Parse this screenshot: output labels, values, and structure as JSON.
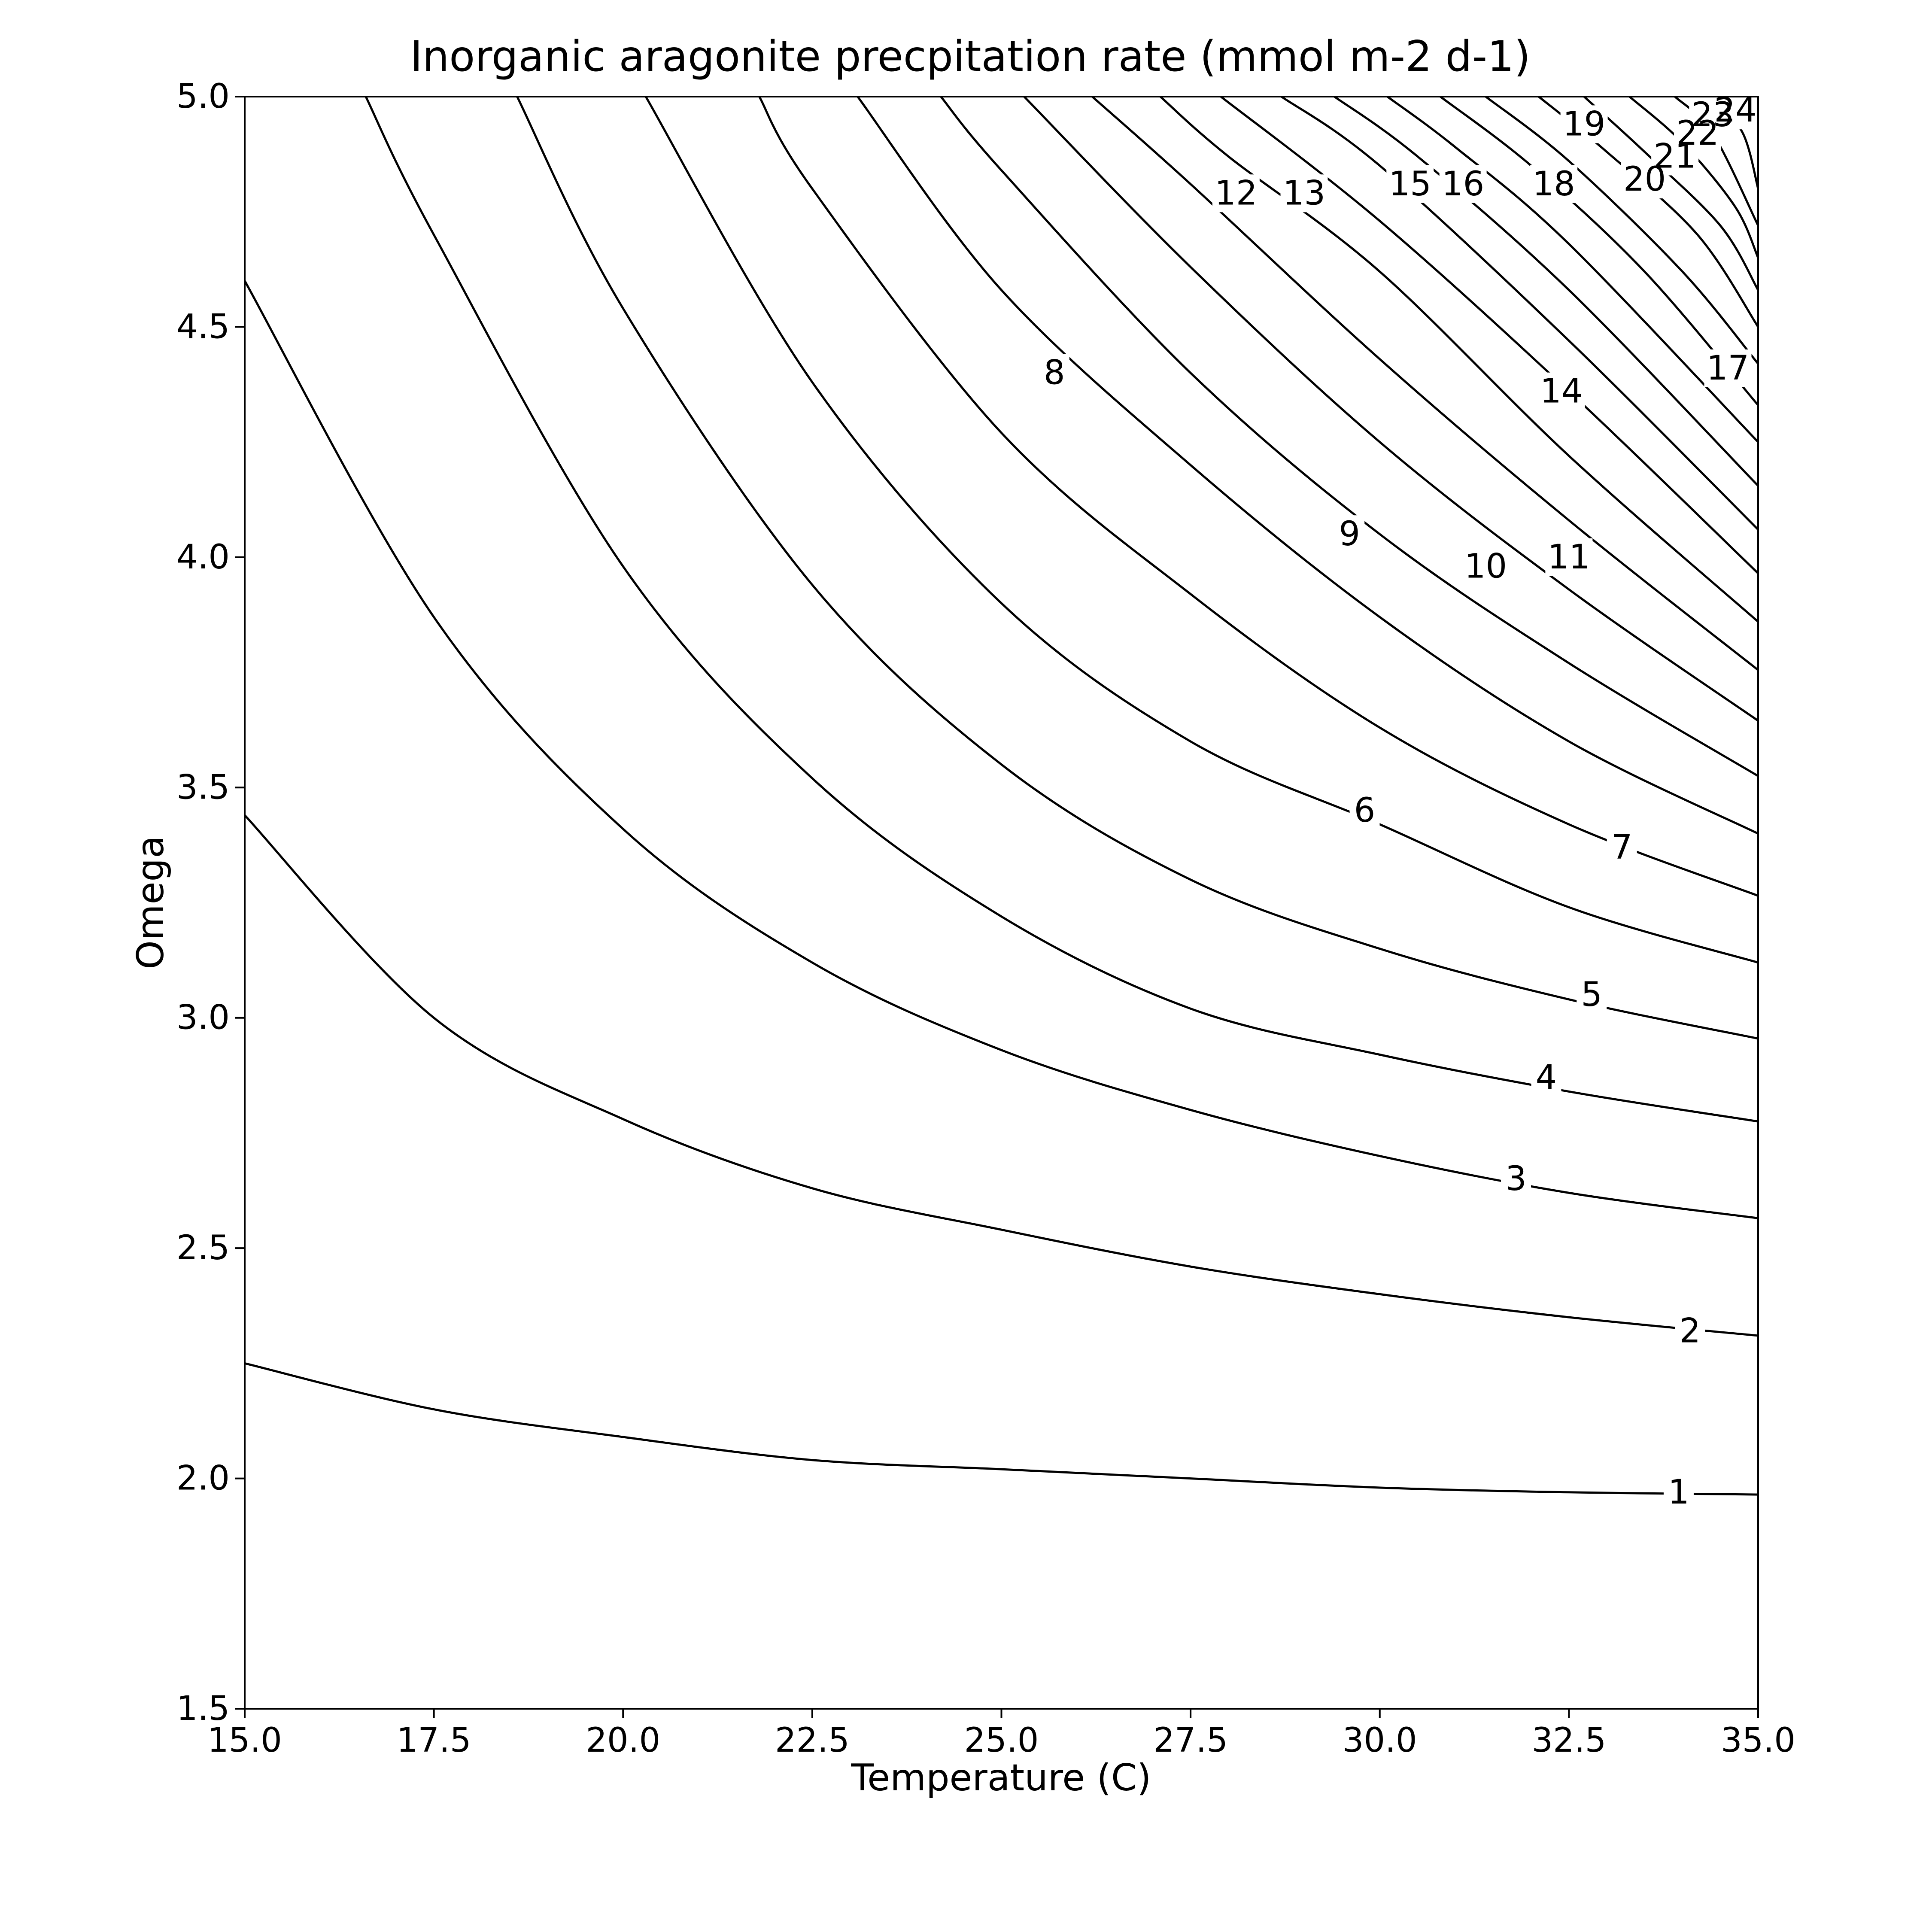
{
  "chart_data": {
    "type": "contour",
    "title": "Inorganic aragonite precpitation rate (mmol m-2 d-1)",
    "xlabel": "Temperature (C)",
    "ylabel": "Omega",
    "xlim": [
      15.0,
      35.0
    ],
    "ylim": [
      1.5,
      5.0
    ],
    "x_ticks": [
      "15.0",
      "17.5",
      "20.0",
      "22.5",
      "25.0",
      "27.5",
      "30.0",
      "32.5",
      "35.0"
    ],
    "y_ticks": [
      "1.5",
      "2.0",
      "2.5",
      "3.0",
      "3.5",
      "4.0",
      "4.5",
      "5.0"
    ],
    "grid": false,
    "legend": "none",
    "line_color": "#000000",
    "contour_levels": [
      1,
      2,
      3,
      4,
      5,
      6,
      7,
      8,
      9,
      10,
      11,
      12,
      13,
      14,
      15,
      16,
      17,
      18,
      19,
      20,
      21,
      22,
      23,
      24
    ],
    "contour_lines": [
      {
        "level": 1,
        "points": [
          [
            15.0,
            2.25
          ],
          [
            17.5,
            2.15
          ],
          [
            20.0,
            2.09
          ],
          [
            22.5,
            2.04
          ],
          [
            25.0,
            2.02
          ],
          [
            27.5,
            2.0
          ],
          [
            30.0,
            1.98
          ],
          [
            32.5,
            1.97
          ],
          [
            35.0,
            1.965
          ]
        ]
      },
      {
        "level": 2,
        "points": [
          [
            15.0,
            3.44
          ],
          [
            17.5,
            3.0
          ],
          [
            20.0,
            2.78
          ],
          [
            22.5,
            2.63
          ],
          [
            25.0,
            2.54
          ],
          [
            27.5,
            2.46
          ],
          [
            30.0,
            2.4
          ],
          [
            32.5,
            2.35
          ],
          [
            35.0,
            2.31
          ]
        ]
      },
      {
        "level": 3,
        "points": [
          [
            15.0,
            4.6
          ],
          [
            17.5,
            3.87
          ],
          [
            20.0,
            3.41
          ],
          [
            22.5,
            3.12
          ],
          [
            25.0,
            2.93
          ],
          [
            27.5,
            2.8
          ],
          [
            30.0,
            2.7
          ],
          [
            32.5,
            2.62
          ],
          [
            35.0,
            2.565
          ]
        ]
      },
      {
        "level": 4,
        "points": [
          [
            16.6,
            5.0
          ],
          [
            17.5,
            4.7
          ],
          [
            20.0,
            3.98
          ],
          [
            22.5,
            3.52
          ],
          [
            25.0,
            3.22
          ],
          [
            27.5,
            3.02
          ],
          [
            30.0,
            2.92
          ],
          [
            32.5,
            2.84
          ],
          [
            35.0,
            2.775
          ]
        ]
      },
      {
        "level": 5,
        "points": [
          [
            18.6,
            5.0
          ],
          [
            20.0,
            4.54
          ],
          [
            22.5,
            3.94
          ],
          [
            25.0,
            3.55
          ],
          [
            27.5,
            3.3
          ],
          [
            30.0,
            3.15
          ],
          [
            32.5,
            3.04
          ],
          [
            35.0,
            2.955
          ]
        ]
      },
      {
        "level": 6,
        "points": [
          [
            20.3,
            5.0
          ],
          [
            22.5,
            4.38
          ],
          [
            25.0,
            3.9
          ],
          [
            27.5,
            3.6
          ],
          [
            30.0,
            3.42
          ],
          [
            32.5,
            3.24
          ],
          [
            35.0,
            3.12
          ]
        ]
      },
      {
        "level": 7,
        "points": [
          [
            21.8,
            5.0
          ],
          [
            22.5,
            4.8
          ],
          [
            25.0,
            4.27
          ],
          [
            27.5,
            3.92
          ],
          [
            30.0,
            3.63
          ],
          [
            32.5,
            3.42
          ],
          [
            35.0,
            3.265
          ]
        ]
      },
      {
        "level": 8,
        "points": [
          [
            23.1,
            5.0
          ],
          [
            25.0,
            4.58
          ],
          [
            27.5,
            4.2
          ],
          [
            30.0,
            3.87
          ],
          [
            32.5,
            3.6
          ],
          [
            35.0,
            3.4
          ]
        ]
      },
      {
        "level": 9,
        "points": [
          [
            24.2,
            5.0
          ],
          [
            25.0,
            4.84
          ],
          [
            27.5,
            4.4
          ],
          [
            30.0,
            4.05
          ],
          [
            32.5,
            3.77
          ],
          [
            35.0,
            3.525
          ]
        ]
      },
      {
        "level": 10,
        "points": [
          [
            25.3,
            5.0
          ],
          [
            27.5,
            4.63
          ],
          [
            30.0,
            4.25
          ],
          [
            32.5,
            3.93
          ],
          [
            35.0,
            3.645
          ]
        ]
      },
      {
        "level": 11,
        "points": [
          [
            26.2,
            5.0
          ],
          [
            27.5,
            4.81
          ],
          [
            30.0,
            4.43
          ],
          [
            32.5,
            4.08
          ],
          [
            35.0,
            3.755
          ]
        ]
      },
      {
        "level": 12,
        "points": [
          [
            27.1,
            5.0
          ],
          [
            28.0,
            4.87
          ],
          [
            30.0,
            4.62
          ],
          [
            32.5,
            4.22
          ],
          [
            35.0,
            3.86
          ]
        ]
      },
      {
        "level": 13,
        "points": [
          [
            27.9,
            5.0
          ],
          [
            30.0,
            4.73
          ],
          [
            32.5,
            4.36
          ],
          [
            35.0,
            3.965
          ]
        ]
      },
      {
        "level": 14,
        "points": [
          [
            28.7,
            5.0
          ],
          [
            30.0,
            4.85
          ],
          [
            32.5,
            4.47
          ],
          [
            35.0,
            4.06
          ]
        ]
      },
      {
        "level": 15,
        "points": [
          [
            29.4,
            5.0
          ],
          [
            30.5,
            4.87
          ],
          [
            32.5,
            4.58
          ],
          [
            35.0,
            4.155
          ]
        ]
      },
      {
        "level": 16,
        "points": [
          [
            30.1,
            5.0
          ],
          [
            31.0,
            4.89
          ],
          [
            32.5,
            4.68
          ],
          [
            35.0,
            4.25
          ]
        ]
      },
      {
        "level": 17,
        "points": [
          [
            30.8,
            5.0
          ],
          [
            32.0,
            4.85
          ],
          [
            33.5,
            4.62
          ],
          [
            35.0,
            4.33
          ]
        ]
      },
      {
        "level": 18,
        "points": [
          [
            31.4,
            5.0
          ],
          [
            32.5,
            4.86
          ],
          [
            34.0,
            4.62
          ],
          [
            35.0,
            4.42
          ]
        ]
      },
      {
        "level": 19,
        "points": [
          [
            32.1,
            5.0
          ],
          [
            33.0,
            4.88
          ],
          [
            34.2,
            4.7
          ],
          [
            35.0,
            4.5
          ]
        ]
      },
      {
        "level": 20,
        "points": [
          [
            32.7,
            5.0
          ],
          [
            33.5,
            4.88
          ],
          [
            34.5,
            4.72
          ],
          [
            35.0,
            4.58
          ]
        ]
      },
      {
        "level": 21,
        "points": [
          [
            33.3,
            5.0
          ],
          [
            34.0,
            4.9
          ],
          [
            34.7,
            4.76
          ],
          [
            35.0,
            4.65
          ]
        ]
      },
      {
        "level": 22,
        "points": [
          [
            33.9,
            5.0
          ],
          [
            34.4,
            4.92
          ],
          [
            35.0,
            4.72
          ]
        ]
      },
      {
        "level": 23,
        "points": [
          [
            34.4,
            5.0
          ],
          [
            34.8,
            4.92
          ],
          [
            35.0,
            4.8
          ]
        ]
      },
      {
        "level": 24,
        "points": [
          [
            34.9,
            5.0
          ],
          [
            35.0,
            4.95
          ]
        ]
      }
    ],
    "contour_labels": [
      {
        "text": "1",
        "x": 33.95,
        "y": 1.97
      },
      {
        "text": "2",
        "x": 34.1,
        "y": 2.32
      },
      {
        "text": "3",
        "x": 31.8,
        "y": 2.65
      },
      {
        "text": "4",
        "x": 32.2,
        "y": 2.87
      },
      {
        "text": "5",
        "x": 32.8,
        "y": 3.05
      },
      {
        "text": "6",
        "x": 29.8,
        "y": 3.45
      },
      {
        "text": "7",
        "x": 33.2,
        "y": 3.37
      },
      {
        "text": "8",
        "x": 25.7,
        "y": 4.4
      },
      {
        "text": "9",
        "x": 29.6,
        "y": 4.05
      },
      {
        "text": "10",
        "x": 31.4,
        "y": 3.98
      },
      {
        "text": "11",
        "x": 32.5,
        "y": 4.0
      },
      {
        "text": "12",
        "x": 28.1,
        "y": 4.79
      },
      {
        "text": "13",
        "x": 29.0,
        "y": 4.79
      },
      {
        "text": "14",
        "x": 32.4,
        "y": 4.36
      },
      {
        "text": "15",
        "x": 30.4,
        "y": 4.81
      },
      {
        "text": "16",
        "x": 31.1,
        "y": 4.81
      },
      {
        "text": "17",
        "x": 34.6,
        "y": 4.41
      },
      {
        "text": "18",
        "x": 32.3,
        "y": 4.81
      },
      {
        "text": "19",
        "x": 32.7,
        "y": 4.94
      },
      {
        "text": "20",
        "x": 33.5,
        "y": 4.82
      },
      {
        "text": "21",
        "x": 33.9,
        "y": 4.87
      },
      {
        "text": "22",
        "x": 34.2,
        "y": 4.92
      },
      {
        "text": "23",
        "x": 34.4,
        "y": 4.96
      },
      {
        "text": "24",
        "x": 34.7,
        "y": 4.97
      }
    ]
  }
}
